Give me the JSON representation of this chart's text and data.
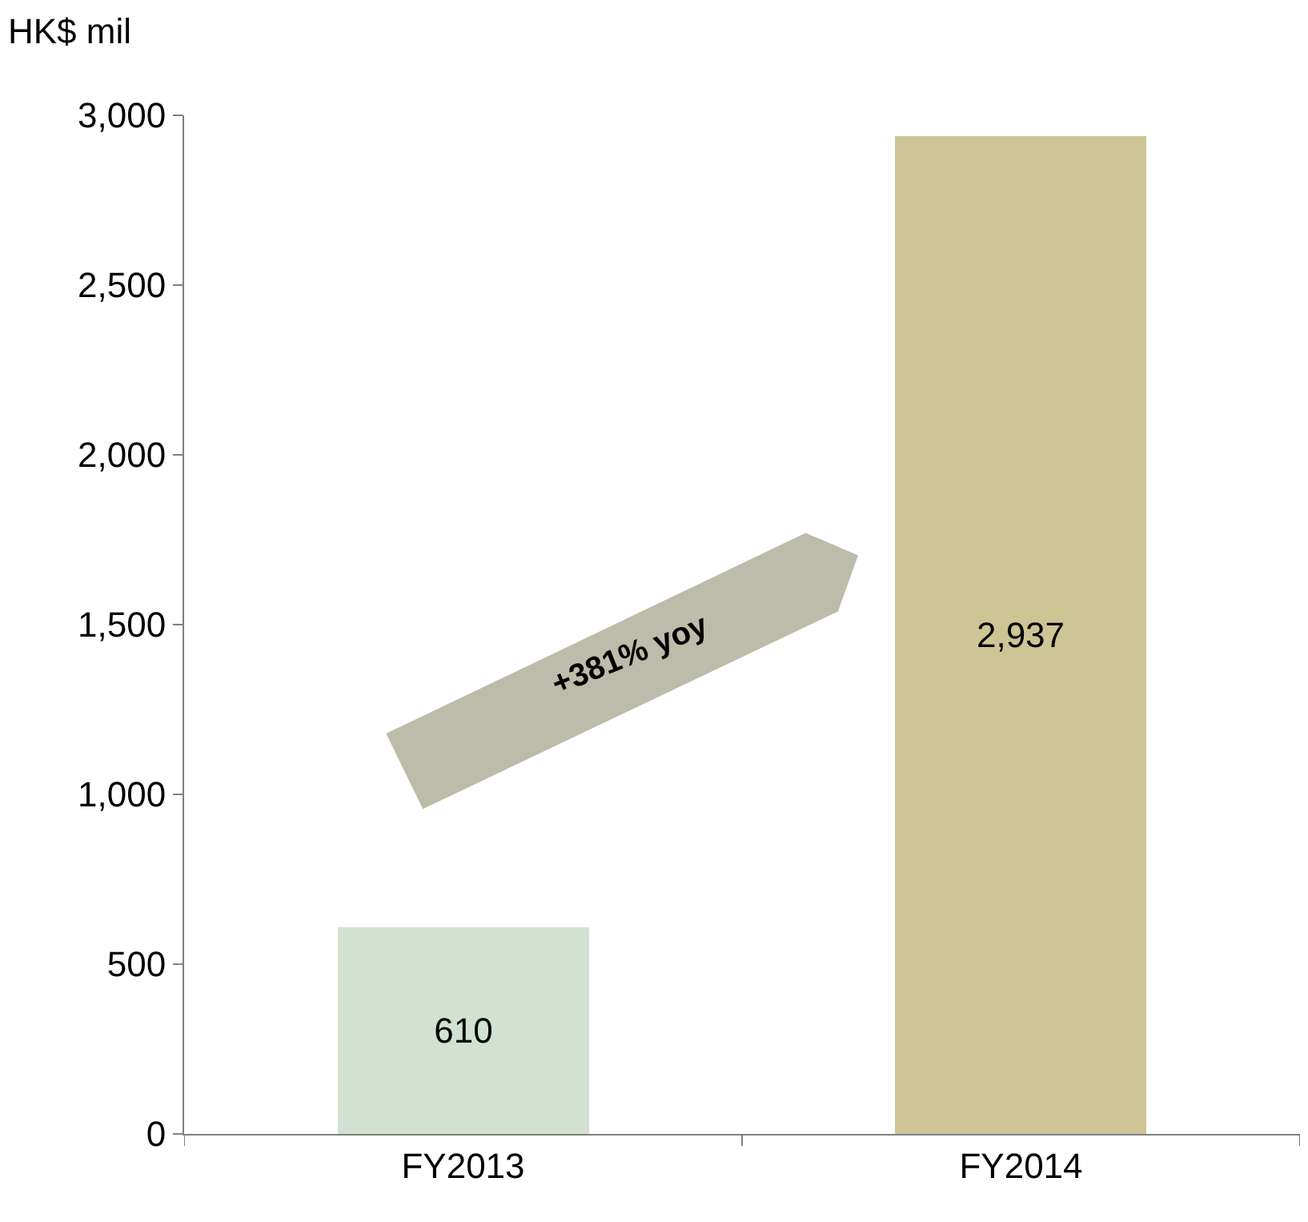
{
  "chart_data": {
    "type": "bar",
    "ylabel": "HK$ mil",
    "categories": [
      "FY2013",
      "FY2014"
    ],
    "values": [
      610,
      2937
    ],
    "colors": [
      "#d2e1d1",
      "#cdc596"
    ],
    "ylim": [
      0,
      3000
    ],
    "yticks": [
      0,
      500,
      {
        "value": 1000,
        "label": "1,000"
      },
      {
        "value": 1500,
        "label": "1,500"
      },
      {
        "value": 2000,
        "label": "2,000"
      },
      {
        "value": 2500,
        "label": "2,500"
      },
      {
        "value": 3000,
        "label": "3,000"
      }
    ],
    "value_labels": [
      "610",
      "2,937"
    ],
    "legend": false,
    "annotations": [
      "+381% yoy"
    ]
  }
}
